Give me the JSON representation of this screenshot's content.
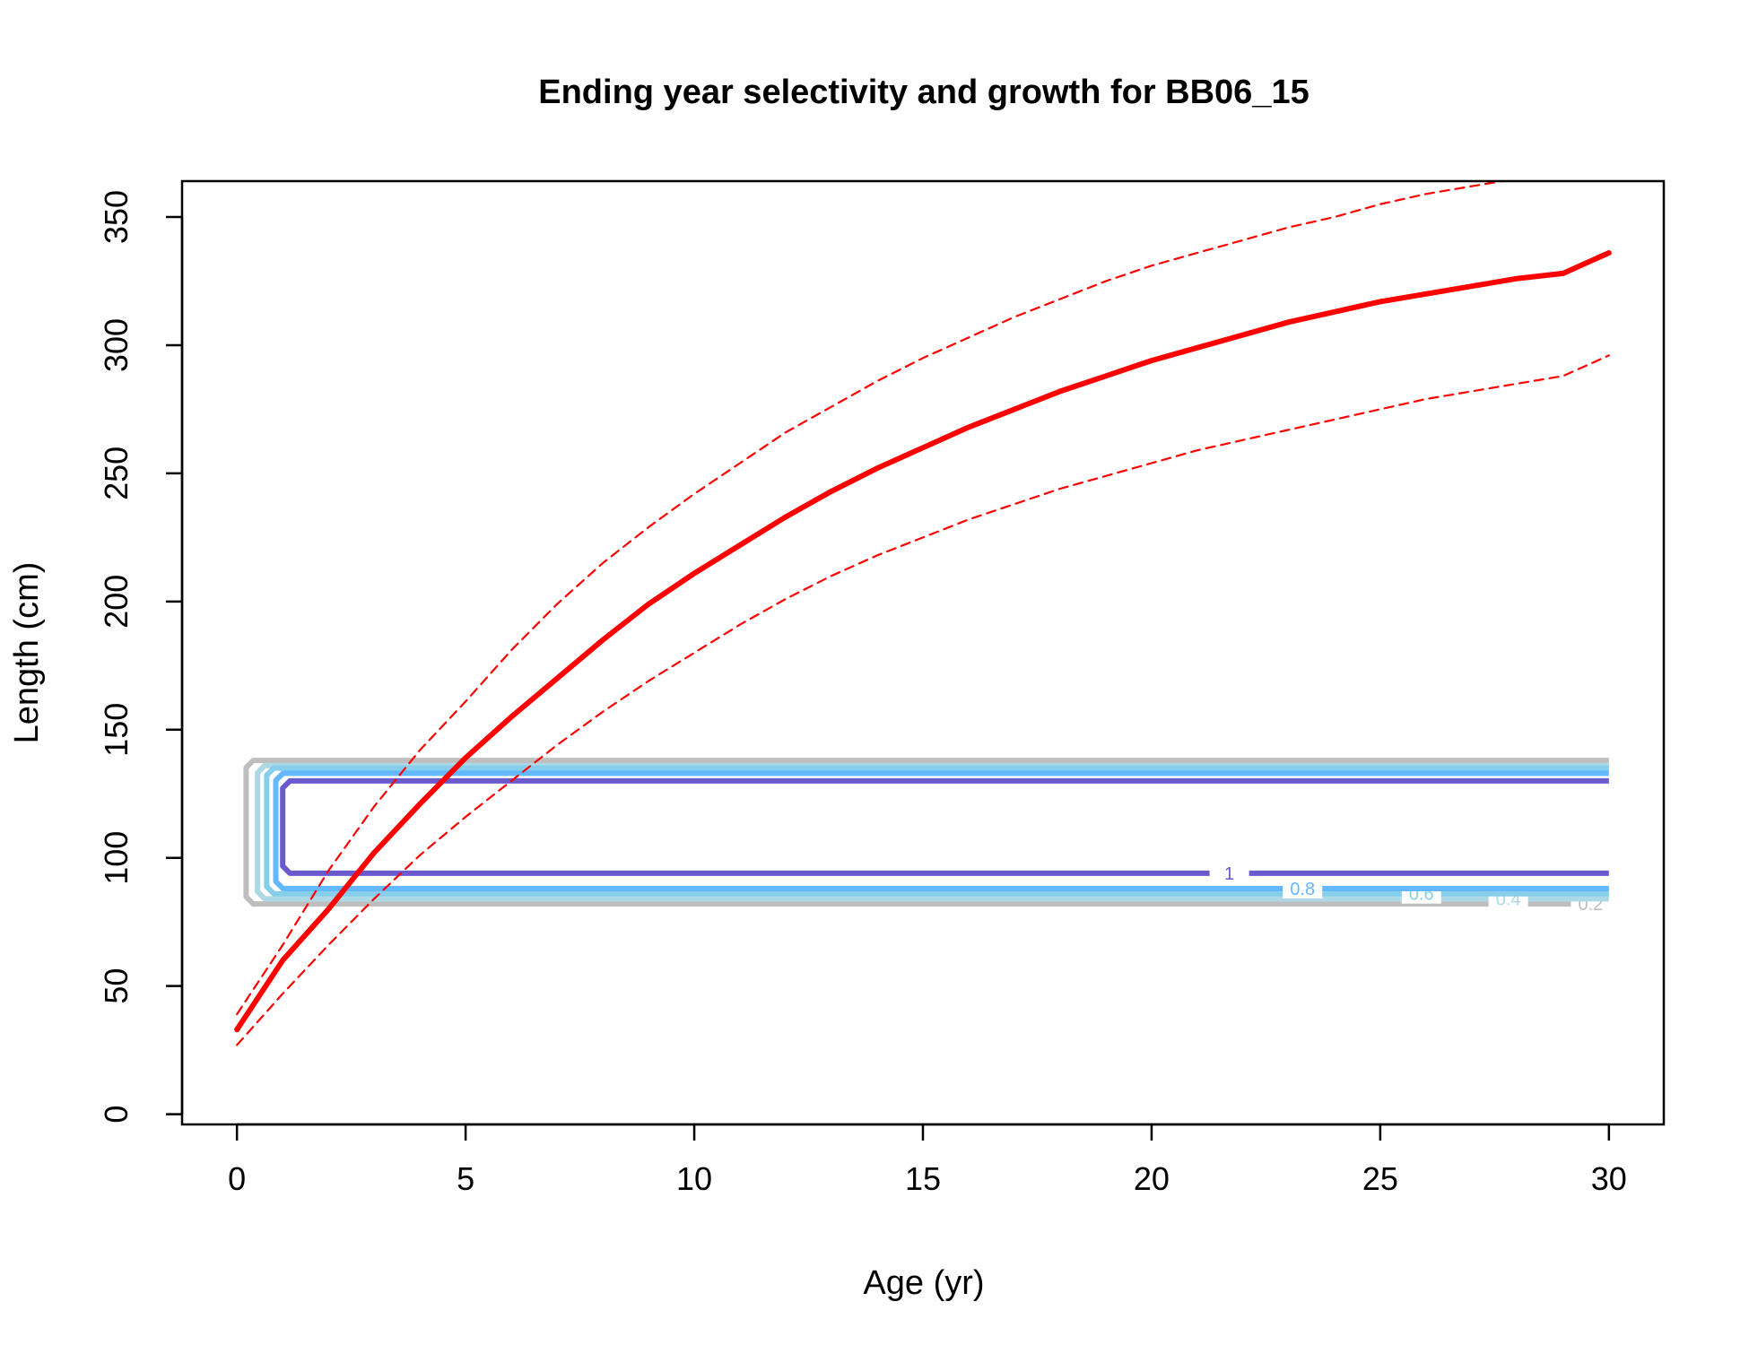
{
  "chart_data": {
    "type": "line",
    "title": "Ending year selectivity and growth for BB06_15",
    "xlabel": "Age (yr)",
    "ylabel": "Length (cm)",
    "xlim": [
      -1.2,
      31.2
    ],
    "ylim": [
      -4,
      364
    ],
    "xticks": [
      0,
      5,
      10,
      15,
      20,
      25,
      30
    ],
    "yticks": [
      0,
      50,
      100,
      150,
      200,
      250,
      300,
      350
    ],
    "grid": false,
    "legend": "none",
    "colors": {
      "mean": "#ff0000",
      "interval": "#ff0000",
      "contours": [
        "#bebebe",
        "#add8e6",
        "#87ceeb",
        "#63b8ff",
        "#6a5acd"
      ]
    },
    "series": [
      {
        "role": "mean",
        "x": [
          0,
          1,
          2,
          3,
          4,
          5,
          6,
          7,
          8,
          9,
          10,
          11,
          12,
          13,
          14,
          15,
          16,
          17,
          18,
          19,
          20,
          21,
          22,
          23,
          24,
          25,
          26,
          27,
          28,
          29,
          30
        ],
        "y": [
          33,
          60,
          80,
          102,
          121,
          139,
          155,
          170,
          185,
          199,
          211,
          222,
          233,
          243,
          252,
          260,
          268,
          275,
          282,
          288,
          294,
          299,
          304,
          309,
          313,
          317,
          320,
          323,
          326,
          328,
          336
        ]
      },
      {
        "role": "upper",
        "x": [
          0,
          1,
          2,
          3,
          4,
          5,
          6,
          7,
          8,
          9,
          10,
          11,
          12,
          13,
          14,
          15,
          16,
          17,
          18,
          19,
          20,
          21,
          22,
          23,
          24,
          25,
          26,
          27,
          28
        ],
        "y": [
          39,
          66,
          95,
          120,
          142,
          161,
          181,
          199,
          215,
          229,
          242,
          254,
          266,
          276,
          286,
          295,
          303,
          311,
          318,
          325,
          331,
          336,
          341,
          346,
          350,
          355,
          359,
          362,
          365
        ]
      },
      {
        "role": "lower",
        "x": [
          0,
          1,
          2,
          3,
          4,
          5,
          6,
          7,
          8,
          9,
          10,
          11,
          12,
          13,
          14,
          15,
          16,
          17,
          18,
          19,
          20,
          21,
          22,
          23,
          24,
          25,
          26,
          27,
          28,
          29,
          30
        ],
        "y": [
          27,
          47,
          66,
          84,
          101,
          116,
          130,
          144,
          157,
          169,
          180,
          191,
          201,
          210,
          218,
          225,
          232,
          238,
          244,
          249,
          254,
          259,
          263,
          267,
          271,
          275,
          279,
          282,
          285,
          288,
          296
        ]
      }
    ],
    "contours": [
      {
        "level": "0.2",
        "xmin": 0.2,
        "ymin": 82,
        "ymax": 138,
        "label_x": 29.6
      },
      {
        "level": "0.4",
        "xmin": 0.45,
        "ymin": 84,
        "ymax": 136,
        "label_x": 27.8
      },
      {
        "level": "0.6",
        "xmin": 0.65,
        "ymin": 86,
        "ymax": 135,
        "label_x": 25.9
      },
      {
        "level": "0.8",
        "xmin": 0.85,
        "ymin": 88,
        "ymax": 133,
        "label_x": 23.3
      },
      {
        "level": "1",
        "xmin": 1.0,
        "ymin": 94,
        "ymax": 130,
        "label_x": 21.7
      }
    ],
    "contour_xmax": 30
  }
}
